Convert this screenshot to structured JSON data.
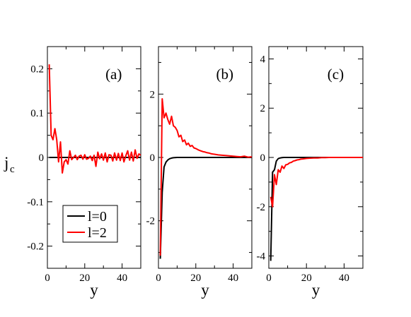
{
  "figure": {
    "ylabel_main": "j",
    "ylabel_sub": "c",
    "xlabel": "y"
  },
  "colors": {
    "l0": "#000000",
    "l2": "#ff0000"
  },
  "legend": {
    "placement": "panel-a-lower-middle",
    "entries": [
      "l=0",
      "l=2"
    ]
  },
  "chart_data": [
    {
      "type": "line",
      "panel_label": "(a)",
      "xlim": [
        0,
        50
      ],
      "ylim": [
        -0.25,
        0.25
      ],
      "xticks": [
        0,
        20,
        40
      ],
      "xtick_labels": [
        "0",
        "20",
        "40"
      ],
      "yticks": [
        -0.2,
        -0.1,
        0,
        0.1,
        0.2
      ],
      "ytick_labels": [
        "-0.2",
        "-0.1",
        "0",
        "0.1",
        "0.2"
      ],
      "grid": false,
      "series": [
        {
          "name": "l=0",
          "color": "#000000",
          "x": [
            1,
            50
          ],
          "y": [
            0,
            0
          ]
        },
        {
          "name": "l=2",
          "color": "#ff0000",
          "x": [
            1,
            2,
            3,
            4,
            5,
            6,
            7,
            8,
            9,
            10,
            11,
            12,
            13,
            14,
            15,
            16,
            17,
            18,
            19,
            20,
            21,
            22,
            23,
            24,
            25,
            26,
            27,
            28,
            29,
            30,
            31,
            32,
            33,
            34,
            35,
            36,
            37,
            38,
            39,
            40,
            41,
            42,
            43,
            44,
            45,
            46,
            47,
            48,
            49,
            50
          ],
          "y": [
            0.21,
            0.05,
            0.04,
            0.065,
            0.04,
            -0.01,
            0.035,
            -0.035,
            -0.01,
            -0.005,
            -0.015,
            0.015,
            -0.005,
            0.0,
            0.005,
            -0.005,
            0.003,
            0.005,
            -0.004,
            0.006,
            -0.004,
            -0.002,
            0.003,
            -0.007,
            0.005,
            -0.02,
            0.012,
            -0.003,
            0.008,
            -0.006,
            0.01,
            -0.01,
            0.006,
            0.005,
            -0.008,
            0.01,
            -0.006,
            0.009,
            -0.007,
            0.01,
            -0.01,
            0.004,
            0.015,
            -0.006,
            0.012,
            -0.008,
            0.017,
            -0.002,
            0.008,
            0.005
          ]
        }
      ]
    },
    {
      "type": "line",
      "panel_label": "(b)",
      "xlim": [
        0,
        50
      ],
      "ylim": [
        -3.5,
        3.5
      ],
      "xticks": [
        0,
        20,
        40
      ],
      "xtick_labels": [
        "0",
        "20",
        "40"
      ],
      "yticks": [
        -2,
        0,
        2
      ],
      "ytick_labels": [
        "-2",
        "0",
        "2"
      ],
      "grid": false,
      "series": [
        {
          "name": "l=0",
          "color": "#000000",
          "x": [
            1,
            2,
            3,
            4,
            5,
            6,
            7,
            8,
            10,
            12,
            15,
            20,
            30,
            40,
            50
          ],
          "y": [
            -3.2,
            -1.1,
            -0.3,
            -0.15,
            -0.08,
            -0.04,
            -0.02,
            -0.01,
            0,
            0,
            0,
            0,
            0,
            0,
            0
          ]
        },
        {
          "name": "l=2",
          "color": "#ff0000",
          "x": [
            1,
            2,
            3,
            4,
            5,
            6,
            7,
            8,
            9,
            10,
            11,
            12,
            13,
            14,
            15,
            16,
            17,
            18,
            19,
            20,
            21,
            22,
            23,
            24,
            25,
            26,
            27,
            28,
            29,
            30,
            32,
            34,
            36,
            38,
            40,
            42,
            44,
            46,
            48,
            50
          ],
          "y": [
            -3.1,
            1.85,
            1.25,
            1.4,
            1.2,
            1.05,
            1.3,
            1.0,
            0.95,
            0.85,
            0.65,
            0.7,
            0.5,
            0.55,
            0.4,
            0.45,
            0.35,
            0.38,
            0.3,
            0.28,
            0.25,
            0.22,
            0.2,
            0.18,
            0.17,
            0.15,
            0.14,
            0.12,
            0.11,
            0.1,
            0.08,
            0.07,
            0.06,
            0.05,
            0.04,
            0.03,
            0.02,
            0.04,
            0.01,
            0.02
          ]
        }
      ]
    },
    {
      "type": "line",
      "panel_label": "(c)",
      "xlim": [
        0,
        50
      ],
      "ylim": [
        -4.5,
        4.5
      ],
      "xticks": [
        0,
        20,
        40
      ],
      "xtick_labels": [
        "0",
        "20",
        "40"
      ],
      "yticks": [
        -4,
        -2,
        0,
        2,
        4
      ],
      "ytick_labels": [
        "-4",
        "-2",
        "0",
        "2",
        "4"
      ],
      "grid": false,
      "series": [
        {
          "name": "l=0",
          "color": "#000000",
          "x": [
            1,
            2,
            3,
            4,
            5,
            6,
            7,
            8,
            10,
            12,
            15,
            20,
            30,
            40,
            50
          ],
          "y": [
            -4.2,
            -0.6,
            -0.5,
            -0.15,
            -0.05,
            -0.02,
            -0.01,
            0,
            0,
            0,
            0,
            0,
            0,
            0,
            0
          ]
        },
        {
          "name": "l=2",
          "color": "#ff0000",
          "x": [
            1,
            2,
            3,
            4,
            5,
            6,
            7,
            8,
            9,
            10,
            11,
            12,
            13,
            14,
            15,
            16,
            17,
            18,
            19,
            20,
            22,
            24,
            26,
            28,
            30,
            32,
            34,
            36,
            38,
            40,
            42,
            44,
            46,
            48,
            50
          ],
          "y": [
            -1.6,
            -2.0,
            -0.7,
            -1.1,
            -0.5,
            -0.6,
            -0.35,
            -0.45,
            -0.3,
            -0.28,
            -0.22,
            -0.2,
            -0.15,
            -0.13,
            -0.1,
            -0.09,
            -0.07,
            -0.06,
            -0.05,
            -0.04,
            -0.03,
            -0.02,
            -0.02,
            -0.01,
            -0.01,
            0,
            0,
            0,
            0,
            0,
            0,
            0,
            0,
            0,
            0
          ]
        }
      ]
    }
  ]
}
